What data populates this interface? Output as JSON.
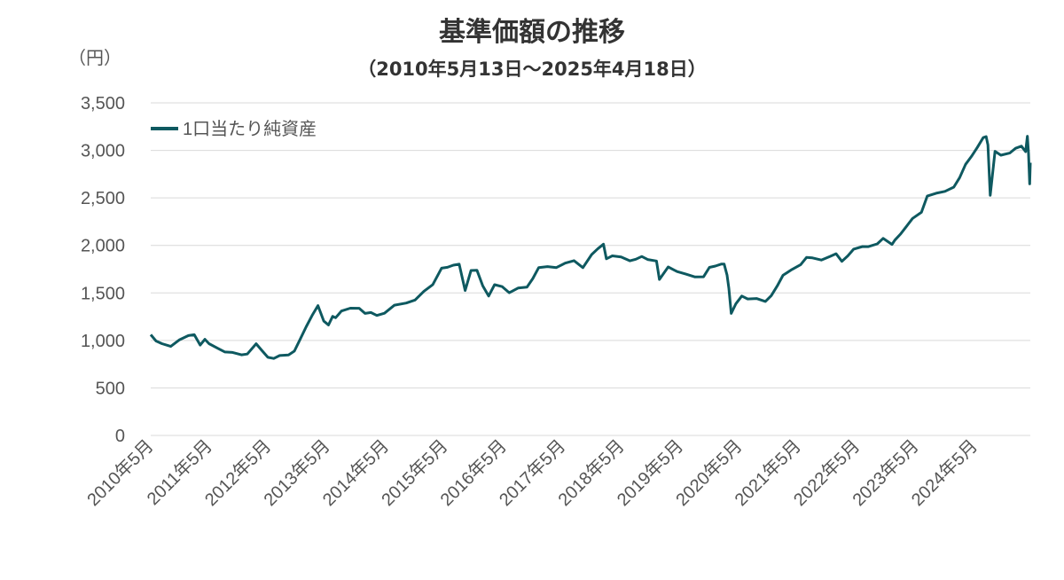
{
  "chart_data": {
    "type": "line",
    "title": "基準価額の推移",
    "subtitle": "（2010年5月13日～2025年4月18日）",
    "ylabel": "（円）",
    "xlabel": "",
    "ylim": [
      0,
      3500
    ],
    "yticks": [
      0,
      500,
      1000,
      1500,
      2000,
      2500,
      3000,
      3500
    ],
    "ytick_labels": [
      "0",
      "500",
      "1,000",
      "1,500",
      "2,000",
      "2,500",
      "3,000",
      "3,500"
    ],
    "xlim": [
      2010.36,
      2025.3
    ],
    "xticks": [
      2010.33,
      2011.33,
      2012.33,
      2013.33,
      2014.33,
      2015.33,
      2016.33,
      2017.33,
      2018.33,
      2019.33,
      2020.33,
      2021.33,
      2022.33,
      2023.33,
      2024.33
    ],
    "xtick_labels": [
      "2010年5月",
      "2011年5月",
      "2012年5月",
      "2013年5月",
      "2014年5月",
      "2015年5月",
      "2016年5月",
      "2017年5月",
      "2018年5月",
      "2019年5月",
      "2020年5月",
      "2021年5月",
      "2022年5月",
      "2023年5月",
      "2024年5月"
    ],
    "grid": true,
    "legend_position": "top-left",
    "line_color": "#0e5960",
    "series": [
      {
        "name": "1口当たり純資産",
        "x": [
          2010.36,
          2010.45,
          2010.55,
          2010.7,
          2010.85,
          2011.0,
          2011.1,
          2011.2,
          2011.28,
          2011.35,
          2011.5,
          2011.62,
          2011.75,
          2011.9,
          2012.0,
          2012.15,
          2012.25,
          2012.35,
          2012.45,
          2012.55,
          2012.7,
          2012.8,
          2012.9,
          2013.0,
          2013.1,
          2013.2,
          2013.3,
          2013.38,
          2013.45,
          2013.5,
          2013.6,
          2013.75,
          2013.9,
          2014.0,
          2014.1,
          2014.2,
          2014.33,
          2014.5,
          2014.7,
          2014.85,
          2015.0,
          2015.15,
          2015.3,
          2015.4,
          2015.5,
          2015.6,
          2015.7,
          2015.8,
          2015.9,
          2016.0,
          2016.1,
          2016.2,
          2016.33,
          2016.45,
          2016.6,
          2016.75,
          2016.85,
          2016.95,
          2017.1,
          2017.25,
          2017.4,
          2017.55,
          2017.7,
          2017.85,
          2017.95,
          2018.05,
          2018.1,
          2018.2,
          2018.35,
          2018.5,
          2018.6,
          2018.7,
          2018.8,
          2018.95,
          2019.0,
          2019.15,
          2019.3,
          2019.45,
          2019.6,
          2019.75,
          2019.85,
          2019.95,
          2020.05,
          2020.1,
          2020.15,
          2020.18,
          2020.22,
          2020.3,
          2020.4,
          2020.5,
          2020.65,
          2020.8,
          2020.9,
          2021.0,
          2021.1,
          2021.25,
          2021.4,
          2021.5,
          2021.6,
          2021.75,
          2021.9,
          2022.0,
          2022.1,
          2022.2,
          2022.3,
          2022.45,
          2022.55,
          2022.7,
          2022.8,
          2022.95,
          2023.0,
          2023.1,
          2023.2,
          2023.3,
          2023.45,
          2023.55,
          2023.7,
          2023.85,
          2024.0,
          2024.1,
          2024.2,
          2024.3,
          2024.4,
          2024.5,
          2024.55,
          2024.58,
          2024.62,
          2024.7,
          2024.8,
          2024.95,
          2025.05,
          2025.15,
          2025.22,
          2025.25,
          2025.27,
          2025.29,
          2025.3
        ],
        "values": [
          1060,
          980,
          970,
          950,
          1000,
          1040,
          1070,
          960,
          1000,
          960,
          930,
          880,
          860,
          850,
          870,
          960,
          880,
          830,
          820,
          830,
          840,
          900,
          1020,
          1130,
          1260,
          1380,
          1200,
          1150,
          1260,
          1250,
          1300,
          1330,
          1350,
          1290,
          1280,
          1260,
          1300,
          1370,
          1380,
          1430,
          1530,
          1580,
          1750,
          1780,
          1800,
          1790,
          1520,
          1750,
          1740,
          1560,
          1470,
          1600,
          1560,
          1490,
          1560,
          1570,
          1640,
          1760,
          1790,
          1770,
          1800,
          1840,
          1780,
          1900,
          1950,
          2020,
          1870,
          1880,
          1870,
          1850,
          1860,
          1870,
          1850,
          1850,
          1640,
          1760,
          1730,
          1710,
          1660,
          1660,
          1780,
          1790,
          1790,
          1800,
          1700,
          1550,
          1270,
          1390,
          1480,
          1430,
          1430,
          1420,
          1480,
          1560,
          1680,
          1760,
          1800,
          1860,
          1870,
          1860,
          1880,
          1900,
          1840,
          1900,
          1950,
          1980,
          2000,
          2020,
          2060,
          2010,
          2070,
          2120,
          2190,
          2290,
          2360,
          2510,
          2540,
          2580,
          2620,
          2700,
          2850,
          2950,
          3030,
          3120,
          3150,
          3070,
          2520,
          2980,
          2960,
          2980,
          3010,
          3040,
          3000,
          3150,
          2950,
          2650,
          2870
        ]
      }
    ]
  }
}
